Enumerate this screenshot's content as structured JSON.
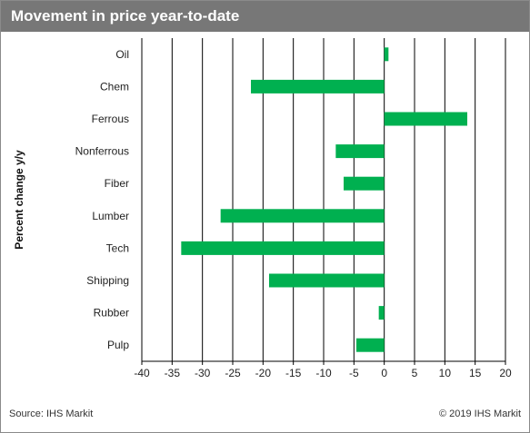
{
  "header": {
    "title": "Movement in price year-to-date"
  },
  "footer": {
    "source": "Source: IHS Markit",
    "copyright": "© 2019 IHS Markit"
  },
  "colors": {
    "bar": "#00b050",
    "title_bg": "#777777",
    "grid": "#000000"
  },
  "chart_data": {
    "type": "bar",
    "orientation": "horizontal",
    "categories": [
      "Oil",
      "Chem",
      "Ferrous",
      "Nonferrous",
      "Fiber",
      "Lumber",
      "Tech",
      "Shipping",
      "Rubber",
      "Pulp"
    ],
    "values": [
      0.7,
      -22,
      13.7,
      -8,
      -6.7,
      -27,
      -33.5,
      -19,
      -0.9,
      -4.6
    ],
    "xlim": [
      -40,
      20
    ],
    "xticks": [
      -40,
      -35,
      -30,
      -25,
      -20,
      -15,
      -10,
      -5,
      0,
      5,
      10,
      15,
      20
    ],
    "xlabel": "",
    "ylabel": "Percent change y/y",
    "grid": true,
    "legend": "none"
  }
}
